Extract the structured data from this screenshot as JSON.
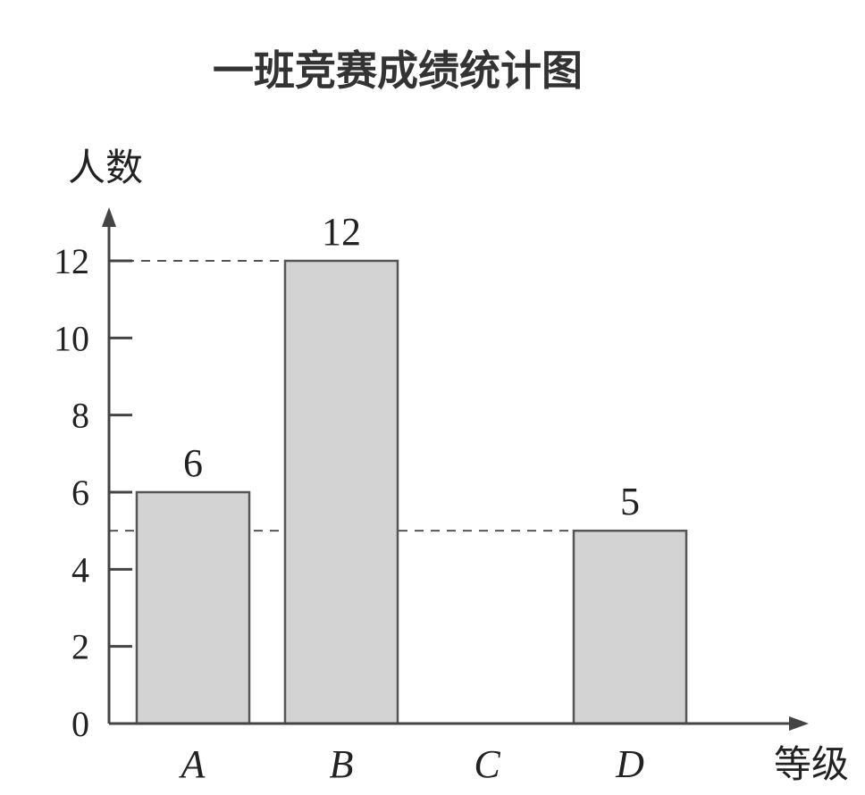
{
  "chart_data": {
    "type": "bar",
    "title": "一班竞赛成绩统计图",
    "ylabel": "人数",
    "xlabel": "等级",
    "categories": [
      "A",
      "B",
      "C",
      "D"
    ],
    "values": [
      6,
      12,
      null,
      5
    ],
    "data_labels": [
      "6",
      "12",
      "",
      "5"
    ],
    "yticks": [
      "0",
      "2",
      "4",
      "6",
      "8",
      "10",
      "12"
    ],
    "ylim": [
      0,
      12
    ],
    "reference_lines": [
      12,
      5
    ],
    "grid": false,
    "colors": {
      "bar": "#d3d3d3",
      "axis": "#444444"
    }
  }
}
